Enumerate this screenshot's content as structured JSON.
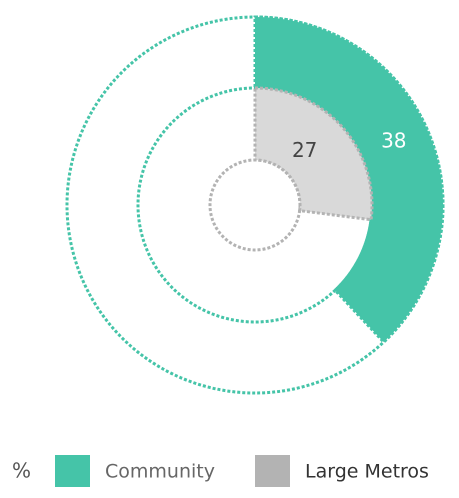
{
  "chart_data": {
    "type": "nested-pie",
    "unit": "%",
    "ylim": [
      0,
      100
    ],
    "series": [
      {
        "name": "Community",
        "color": "#45c4a8",
        "values": [
          38
        ]
      },
      {
        "name": "Large Metros",
        "color": "#b3b3b3",
        "values": [
          27
        ]
      }
    ]
  }
}
